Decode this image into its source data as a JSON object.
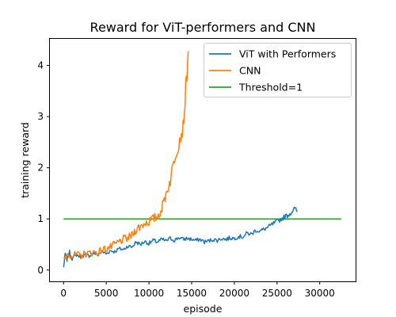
{
  "chart_data": {
    "type": "line",
    "title": "Reward for ViT-performers and CNN",
    "xlabel": "episode",
    "ylabel": "training reward",
    "xlim": [
      -1600,
      34200
    ],
    "ylim": [
      -0.22,
      4.52
    ],
    "xticks": [
      0,
      5000,
      10000,
      15000,
      20000,
      25000,
      30000
    ],
    "yticks": [
      0,
      1,
      2,
      3,
      4
    ],
    "grid": false,
    "legend_position": "top-right",
    "series": [
      {
        "name": "ViT with Performers",
        "color": "#1f77b4",
        "points": [
          [
            0,
            0.05
          ],
          [
            200,
            0.32
          ],
          [
            400,
            0.2
          ],
          [
            700,
            0.35
          ],
          [
            1000,
            0.22
          ],
          [
            1500,
            0.3
          ],
          [
            2000,
            0.26
          ],
          [
            2500,
            0.3
          ],
          [
            3000,
            0.28
          ],
          [
            3500,
            0.33
          ],
          [
            4000,
            0.3
          ],
          [
            4500,
            0.36
          ],
          [
            5000,
            0.32
          ],
          [
            5500,
            0.38
          ],
          [
            6000,
            0.36
          ],
          [
            6500,
            0.42
          ],
          [
            7000,
            0.4
          ],
          [
            7500,
            0.47
          ],
          [
            8000,
            0.45
          ],
          [
            8500,
            0.55
          ],
          [
            9000,
            0.5
          ],
          [
            9500,
            0.56
          ],
          [
            10000,
            0.52
          ],
          [
            10500,
            0.58
          ],
          [
            11000,
            0.55
          ],
          [
            11500,
            0.6
          ],
          [
            12000,
            0.57
          ],
          [
            12500,
            0.62
          ],
          [
            13000,
            0.58
          ],
          [
            13500,
            0.64
          ],
          [
            14000,
            0.6
          ],
          [
            14500,
            0.62
          ],
          [
            15000,
            0.6
          ],
          [
            15500,
            0.58
          ],
          [
            16000,
            0.6
          ],
          [
            16500,
            0.55
          ],
          [
            17000,
            0.57
          ],
          [
            17500,
            0.6
          ],
          [
            18000,
            0.58
          ],
          [
            18500,
            0.62
          ],
          [
            19000,
            0.6
          ],
          [
            19500,
            0.63
          ],
          [
            20000,
            0.62
          ],
          [
            20500,
            0.66
          ],
          [
            21000,
            0.65
          ],
          [
            21500,
            0.72
          ],
          [
            22000,
            0.7
          ],
          [
            22500,
            0.78
          ],
          [
            23000,
            0.76
          ],
          [
            23500,
            0.8
          ],
          [
            24000,
            0.84
          ],
          [
            24500,
            0.9
          ],
          [
            25000,
            0.95
          ],
          [
            25500,
            1.0
          ],
          [
            26000,
            1.05
          ],
          [
            26500,
            1.1
          ],
          [
            27000,
            1.2
          ],
          [
            27400,
            1.15
          ]
        ],
        "noise": 0.05
      },
      {
        "name": "CNN",
        "color": "#ff7f0e",
        "points": [
          [
            0,
            0.2
          ],
          [
            500,
            0.32
          ],
          [
            1000,
            0.28
          ],
          [
            1500,
            0.3
          ],
          [
            2000,
            0.28
          ],
          [
            2500,
            0.32
          ],
          [
            3000,
            0.33
          ],
          [
            3500,
            0.35
          ],
          [
            4000,
            0.34
          ],
          [
            4500,
            0.4
          ],
          [
            5000,
            0.42
          ],
          [
            5500,
            0.45
          ],
          [
            6000,
            0.5
          ],
          [
            6500,
            0.55
          ],
          [
            7000,
            0.6
          ],
          [
            7500,
            0.62
          ],
          [
            8000,
            0.68
          ],
          [
            8500,
            0.8
          ],
          [
            9000,
            0.85
          ],
          [
            9500,
            0.92
          ],
          [
            10000,
            0.95
          ],
          [
            10500,
            1.0
          ],
          [
            11000,
            1.05
          ],
          [
            11500,
            1.2
          ],
          [
            12000,
            1.5
          ],
          [
            12500,
            1.75
          ],
          [
            13000,
            2.2
          ],
          [
            13500,
            2.5
          ],
          [
            14000,
            2.8
          ],
          [
            14300,
            3.5
          ],
          [
            14600,
            4.28
          ]
        ],
        "noise": 0.1
      },
      {
        "name": "Threshold=1",
        "color": "#2ca02c",
        "points": [
          [
            0,
            1.0
          ],
          [
            32500,
            1.0
          ]
        ],
        "noise": 0
      }
    ]
  }
}
